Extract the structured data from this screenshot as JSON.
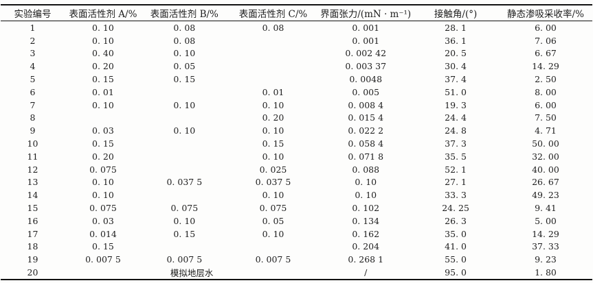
{
  "table": {
    "headers": [
      "实验编号",
      "表面活性剂 A/%",
      "表面活性剂 B/%",
      "表面活性剂 C/%",
      "界面张力/(mN · m⁻¹)",
      "接触角/(°)",
      "静态渗吸采收率/%"
    ],
    "rows": [
      [
        "1",
        "0. 10",
        "0. 08",
        "0. 08",
        "0. 001",
        "28. 1",
        "6. 00"
      ],
      [
        "2",
        "0. 10",
        "0. 08",
        "",
        "0. 001",
        "36. 1",
        "7. 06"
      ],
      [
        "3",
        "0. 40",
        "0. 10",
        "",
        "0. 002 42",
        "20. 5",
        "6. 67"
      ],
      [
        "4",
        "0. 20",
        "0. 05",
        "",
        "0. 003 37",
        "30. 4",
        "14. 29"
      ],
      [
        "5",
        "0. 15",
        "0. 15",
        "",
        "0. 0048",
        "37. 4",
        "2. 50"
      ],
      [
        "6",
        "0. 01",
        "",
        "0. 01",
        "0. 005",
        "51. 0",
        "8. 00"
      ],
      [
        "7",
        "0. 10",
        "0. 10",
        "0. 10",
        "0. 008 4",
        "19. 3",
        "6. 00"
      ],
      [
        "8",
        "",
        "",
        "0. 20",
        "0. 015 4",
        "24. 4",
        "7. 50"
      ],
      [
        "9",
        "0. 03",
        "0. 10",
        "0. 10",
        "0. 022 2",
        "24. 8",
        "4. 71"
      ],
      [
        "10",
        "0. 15",
        "",
        "0. 15",
        "0. 058 4",
        "37. 3",
        "50. 00"
      ],
      [
        "11",
        "0. 20",
        "",
        "0. 10",
        "0. 071 8",
        "35. 5",
        "32. 00"
      ],
      [
        "12",
        "0. 075",
        "",
        "0. 025",
        "0. 088",
        "52. 1",
        "40. 00"
      ],
      [
        "13",
        "0. 10",
        "0. 037 5",
        "0. 037 5",
        "0. 10",
        "27. 1",
        "26. 67"
      ],
      [
        "14",
        "0. 10",
        "",
        "0. 10",
        "0. 10",
        "33. 3",
        "49. 23"
      ],
      [
        "15",
        "0. 075",
        "0. 075",
        "0. 075",
        "0. 102",
        "24. 25",
        "9. 41"
      ],
      [
        "16",
        "0. 03",
        "0. 10",
        "0. 05",
        "0. 134",
        "26. 3",
        "5. 00"
      ],
      [
        "17",
        "0. 014",
        "0. 15",
        "0. 10",
        "0. 162",
        "35. 0",
        "14. 29"
      ],
      [
        "18",
        "0. 15",
        "",
        "",
        "0. 204",
        "41. 0",
        "37. 33"
      ],
      [
        "19",
        "0. 007 5",
        "0. 007 5",
        "0. 007 5",
        "0. 268 1",
        "55. 0",
        "9. 23"
      ],
      [
        "20",
        {
          "t": "模拟地层水",
          "span": 3
        },
        "/",
        "95. 0",
        "1. 80"
      ]
    ]
  }
}
